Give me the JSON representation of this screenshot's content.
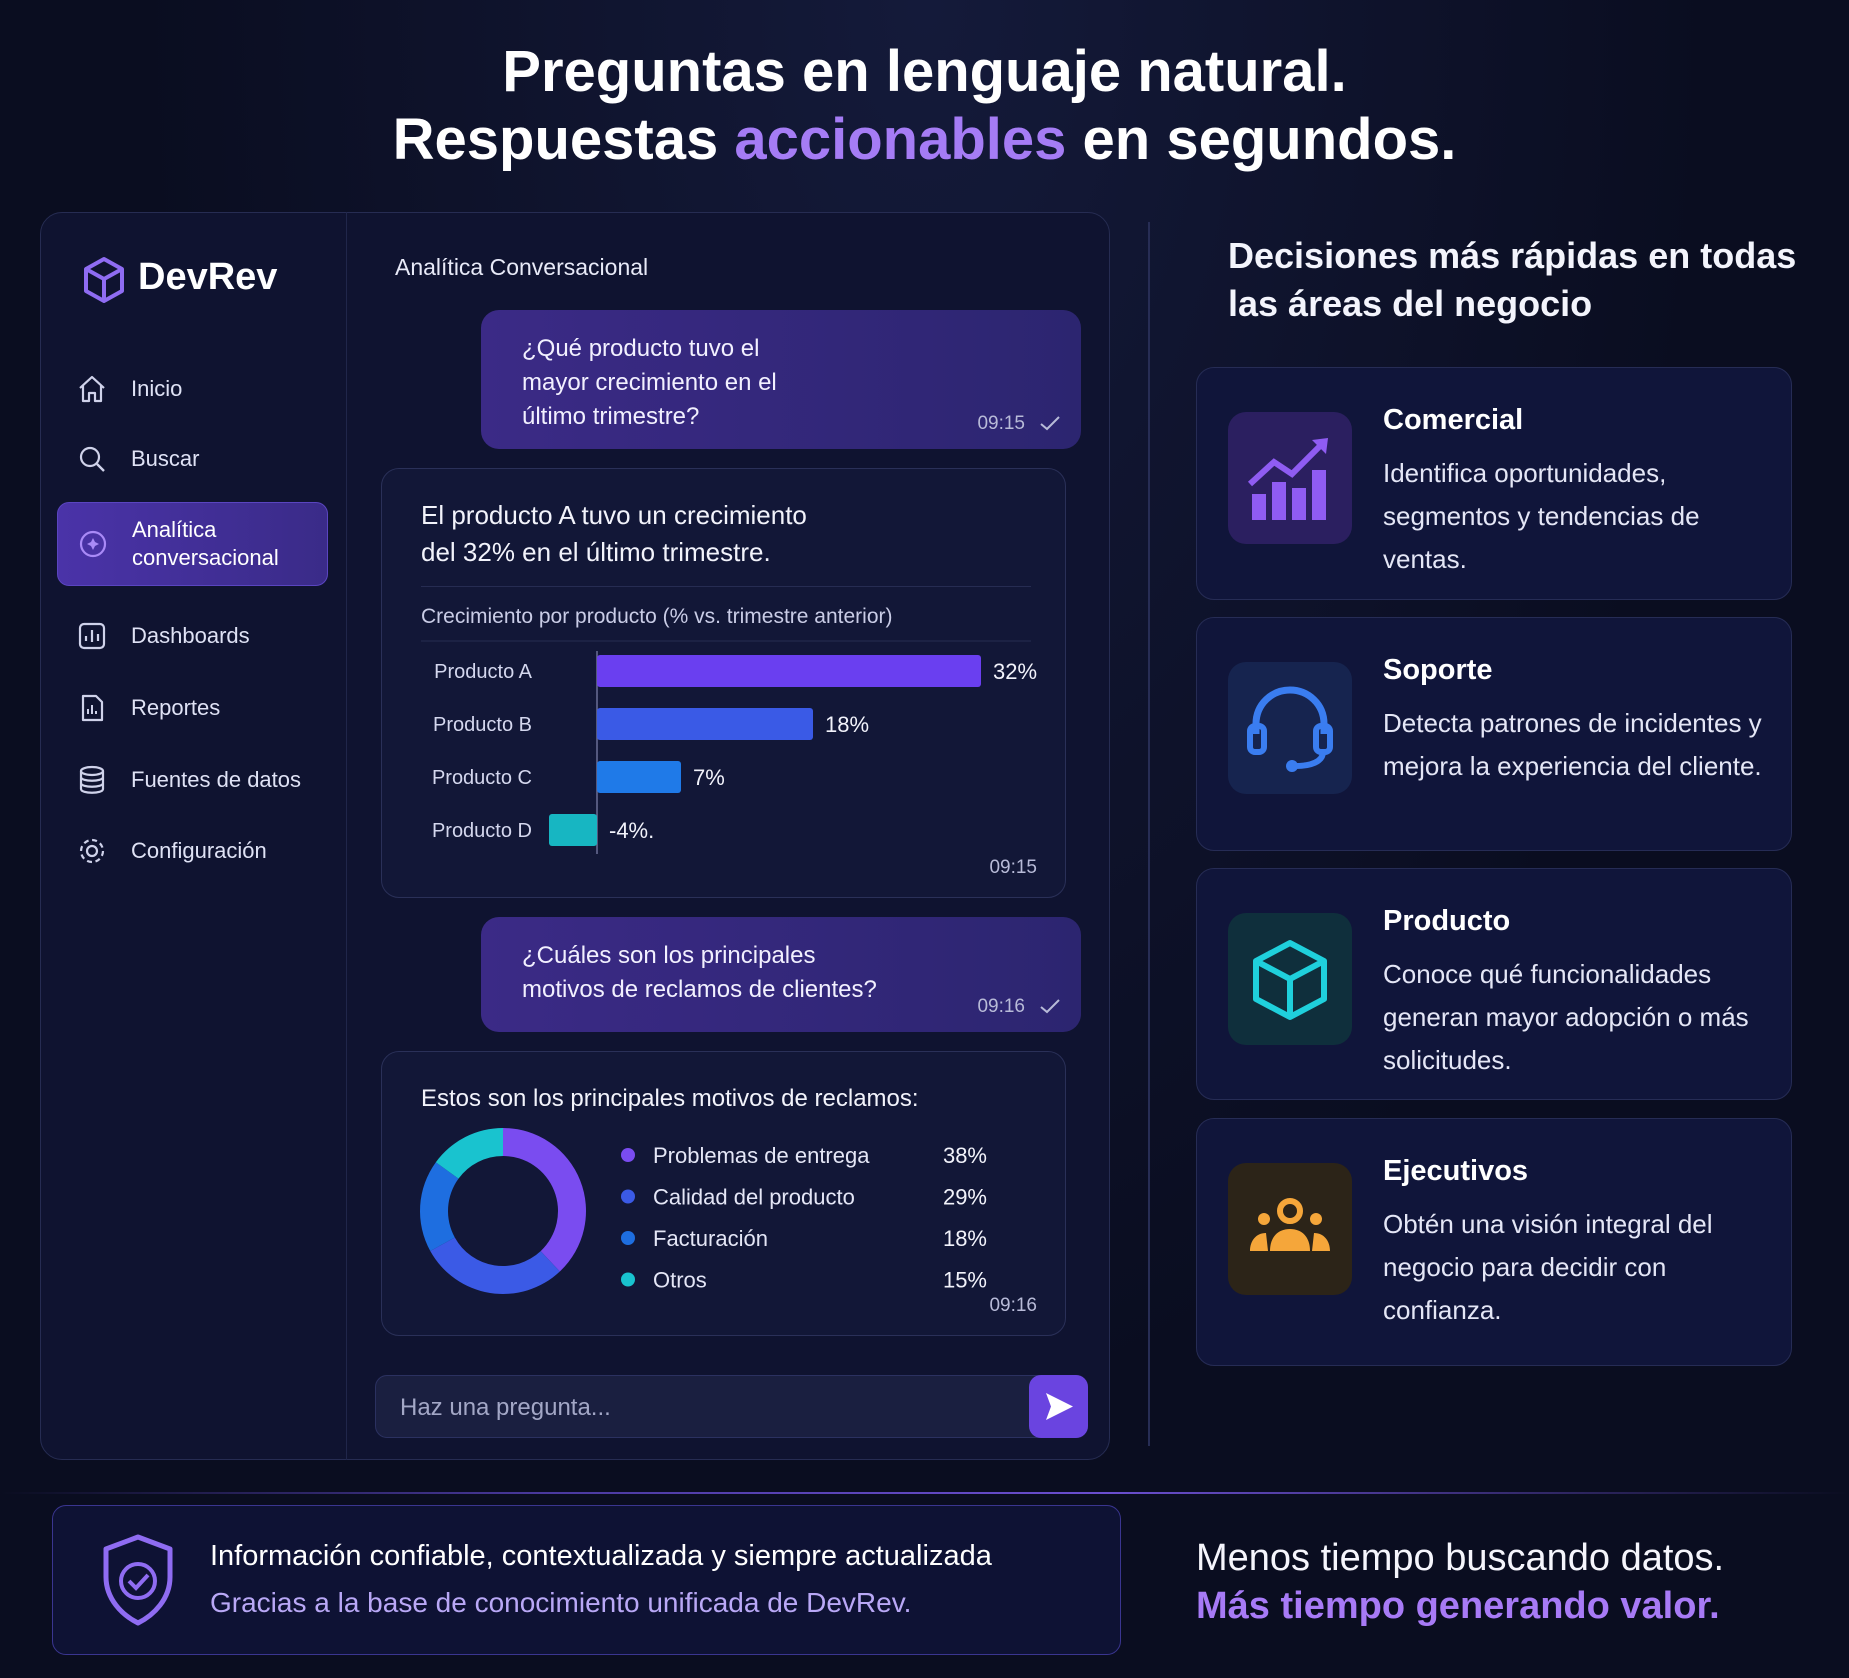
{
  "header": {
    "line1": "Preguntas en lenguaje natural.",
    "line2": [
      "Respuestas",
      "accionables",
      "en segundos."
    ]
  },
  "sidebar": {
    "brand": "DevRev",
    "nav": [
      "Inicio",
      "Buscar",
      "Analítica conversacional",
      "Dashboards",
      "Reportes",
      "Fuentes de datos",
      "Configuración"
    ]
  },
  "chat": {
    "title": "Analítica Conversacional",
    "messages": [
      {
        "text": "¿Qué producto tuvo el mayor crecimiento en el último trimestre?",
        "time": "09:15"
      },
      {
        "text": "El producto A tuvo un crecimiento del 32% en el último trimestre.",
        "time": "09:15",
        "chart": {
          "type": "bar",
          "title": "Crecimiento por producto (% vs. trimestre anterior)",
          "categories": [
            "Producto A",
            "Producto B",
            "Producto C",
            "Producto D"
          ],
          "values": [
            32,
            18,
            7,
            -4
          ],
          "value_labels": [
            "32%",
            "18%",
            "7%",
            "-4%."
          ],
          "colors": [
            "#6a3ff0",
            "#3a5ae6",
            "#1f7ae8",
            "#17b6c2"
          ]
        }
      },
      {
        "text": "¿Cuáles son los principales motivos de reclamos de clientes?",
        "time": "09:16"
      },
      {
        "text": "Estos son los principales motivos de reclamos:",
        "time": "09:16",
        "chart": {
          "type": "pie",
          "categories": [
            "Problemas de entrega",
            "Calidad del producto",
            "Facturación",
            "Otros"
          ],
          "values": [
            38,
            29,
            18,
            15
          ],
          "value_labels": [
            "38%",
            "29%",
            "18%",
            "15%"
          ],
          "colors": [
            "#7a4cf0",
            "#3b5ae6",
            "#1e6ee0",
            "#19c3cf"
          ]
        }
      }
    ],
    "input_placeholder": "Haz una pregunta..."
  },
  "right": {
    "title": "Decisiones más rápidas en todas las áreas del negocio",
    "cards": [
      {
        "title": "Comercial",
        "text": "Identifica oportunidades, segmentos y tendencias de ventas."
      },
      {
        "title": "Soporte",
        "text": "Detecta patrones de incidentes y mejora la experiencia del cliente."
      },
      {
        "title": "Producto",
        "text": "Conoce qué funcionalidades generan mayor adopción o más solicitudes."
      },
      {
        "title": "Ejecutivos",
        "text": "Obtén una visión integral del negocio para decidir con confianza."
      }
    ]
  },
  "footer": {
    "title": "Información confiable, contextualizada y siempre actualizada",
    "subtitle": "Gracias a la base de conocimiento unificada de DevRev.",
    "tagline1": "Menos tiempo buscando datos.",
    "tagline2": "Más tiempo generando valor."
  }
}
